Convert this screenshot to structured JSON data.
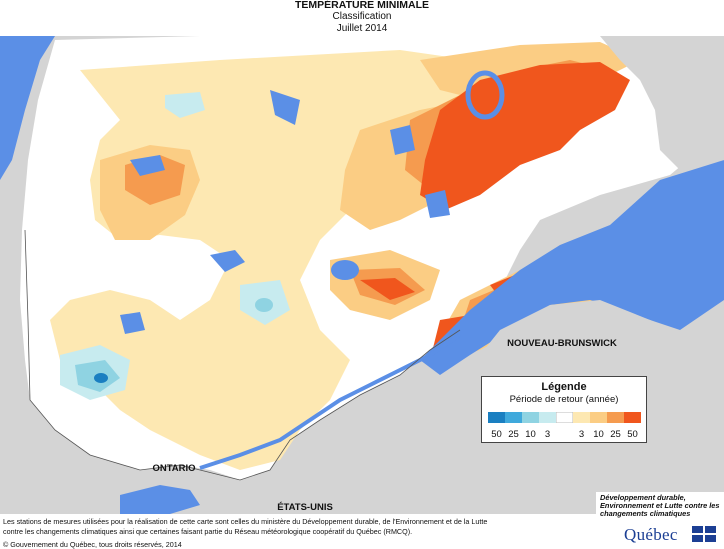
{
  "header": {
    "title": "TEMPÉRATURE MINIMALE",
    "subtitle": "Classification",
    "period": "Juillet 2014"
  },
  "map_labels": {
    "province_nb": "NOUVEAU-BRUNSWICK",
    "province_on": "ONTARIO",
    "country_us": "ÉTATS-UNIS"
  },
  "legend": {
    "title": "Légende",
    "subtitle": "Période de retour (année)",
    "classes": [
      {
        "label": "50",
        "color": "#1a7fc1"
      },
      {
        "label": "25",
        "color": "#3fa9dc"
      },
      {
        "label": "10",
        "color": "#8fd3e2"
      },
      {
        "label": "3",
        "color": "#c7ebef"
      },
      {
        "label": "",
        "color": "#ffffff"
      },
      {
        "label": "3",
        "color": "#fde8b2"
      },
      {
        "label": "10",
        "color": "#fbcd84"
      },
      {
        "label": "25",
        "color": "#f59b4f"
      },
      {
        "label": "50",
        "color": "#f0561d"
      }
    ]
  },
  "colors": {
    "water": "#5b8fe6",
    "land_outside": "#d4d4d4"
  },
  "footer": {
    "note": "Les stations de mesures utilisées pour la réalisation de cette carte sont celles du ministère du Développement durable, de l'Environnement et de la Lutte contre les changements climatiques ainsi que certaines faisant partie du Réseau météorologique coopératif du Québec (RMCQ).",
    "copyright": "© Gouvernement du Québec, tous droits réservés, 2014"
  },
  "logo": {
    "text": "Développement durable, Environnement et Lutte contre les changements climatiques",
    "brand": "Québec"
  }
}
